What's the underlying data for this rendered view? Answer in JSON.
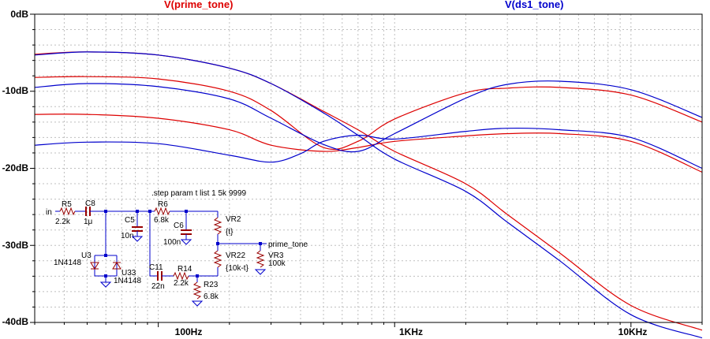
{
  "traces_header": {
    "left_label": "V(prime_tone)",
    "right_label": "V(ds1_tone)"
  },
  "colors": {
    "prime_tone": "#dd0000",
    "ds1_tone": "#0000cc",
    "schematic_wire": "#0000cc",
    "schematic_part": "#990000",
    "grid": "#bfbfbf",
    "axis": "#000000"
  },
  "chart_data": {
    "type": "line",
    "title": "",
    "xlabel": "",
    "ylabel": "",
    "xscale": "log",
    "xlim": [
      30,
      20000
    ],
    "ylim": [
      -40,
      0
    ],
    "grid": true,
    "y_ticks": [
      "0dB",
      "-10dB",
      "-20dB",
      "-30dB",
      "-40dB"
    ],
    "x_ticks": [
      "100Hz",
      "1KHz",
      "10KHz"
    ],
    "series": [
      {
        "name": "V(prime_tone)",
        "color": "#dd0000",
        "x": [
          30,
          50,
          100,
          200,
          300,
          500,
          700,
          1000,
          2000,
          3000,
          5000,
          10000,
          20000
        ],
        "y": [
          -5.2,
          -4.9,
          -5.3,
          -7,
          -9,
          -12.6,
          -15,
          -17.8,
          -22,
          -26,
          -31,
          -37.8,
          -41
        ]
      },
      {
        "name": "V(prime_tone)",
        "color": "#dd0000",
        "x": [
          30,
          50,
          100,
          200,
          300,
          500,
          700,
          1000,
          2000,
          3000,
          5000,
          10000,
          20000
        ],
        "y": [
          -8.2,
          -8.1,
          -8.4,
          -10,
          -12.5,
          -17.3,
          -16.5,
          -13.6,
          -10.2,
          -9.6,
          -9.5,
          -10.5,
          -14
        ]
      },
      {
        "name": "V(prime_tone)",
        "color": "#dd0000",
        "x": [
          30,
          50,
          100,
          200,
          300,
          500,
          700,
          1000,
          2000,
          3000,
          5000,
          10000,
          20000
        ],
        "y": [
          -13,
          -13,
          -13.5,
          -15,
          -17,
          -17.8,
          -17.3,
          -16.5,
          -15.8,
          -15.5,
          -15.5,
          -16.5,
          -20.5
        ]
      },
      {
        "name": "V(ds1_tone)",
        "color": "#0000cc",
        "x": [
          30,
          50,
          100,
          200,
          300,
          500,
          700,
          1000,
          2000,
          3000,
          5000,
          10000,
          20000
        ],
        "y": [
          -5.3,
          -4.9,
          -5.3,
          -7,
          -9,
          -12.8,
          -15.7,
          -18.8,
          -23,
          -27,
          -32,
          -39,
          -42
        ]
      },
      {
        "name": "V(ds1_tone)",
        "color": "#0000cc",
        "x": [
          30,
          50,
          100,
          200,
          300,
          500,
          700,
          1000,
          2000,
          3000,
          5000,
          10000,
          20000
        ],
        "y": [
          -9.5,
          -9,
          -9.4,
          -11,
          -13.5,
          -16.9,
          -17.8,
          -15.5,
          -10.9,
          -9.1,
          -8.7,
          -9.8,
          -13.4
        ]
      },
      {
        "name": "V(ds1_tone)",
        "color": "#0000cc",
        "x": [
          30,
          50,
          100,
          200,
          300,
          400,
          500,
          700,
          1000,
          2000,
          3000,
          5000,
          10000,
          20000
        ],
        "y": [
          -17,
          -16.6,
          -16.8,
          -18.3,
          -19.2,
          -18.1,
          -16.5,
          -15.7,
          -16.2,
          -15.2,
          -14.8,
          -15,
          -16,
          -20
        ]
      }
    ]
  },
  "schematic": {
    "directive": ".step param t list 1 5k 9999",
    "labels": {
      "in": "in",
      "r5": "R5",
      "r5_val": "2.2k",
      "c8": "C8",
      "c8_val": "1μ",
      "c5": "C5",
      "c5_val": "10n",
      "r6": "R6",
      "r6_val": "6.8k",
      "c6": "C6",
      "c6_val": "100n",
      "vr2": "VR2",
      "vr2_val": "{t}",
      "prime_tone": "prime_tone",
      "vr22": "VR22",
      "vr22_val": "{10k-t}",
      "vr3": "VR3",
      "vr3_val": "100k",
      "u3": "U3",
      "u3_val": "1N4148",
      "u33": "U33",
      "u33_val": "1N4148",
      "c11": "C11",
      "c11_val": "22n",
      "r14": "R14",
      "r14_val": "2.2k",
      "r23": "R23",
      "r23_val": "6.8k"
    }
  }
}
